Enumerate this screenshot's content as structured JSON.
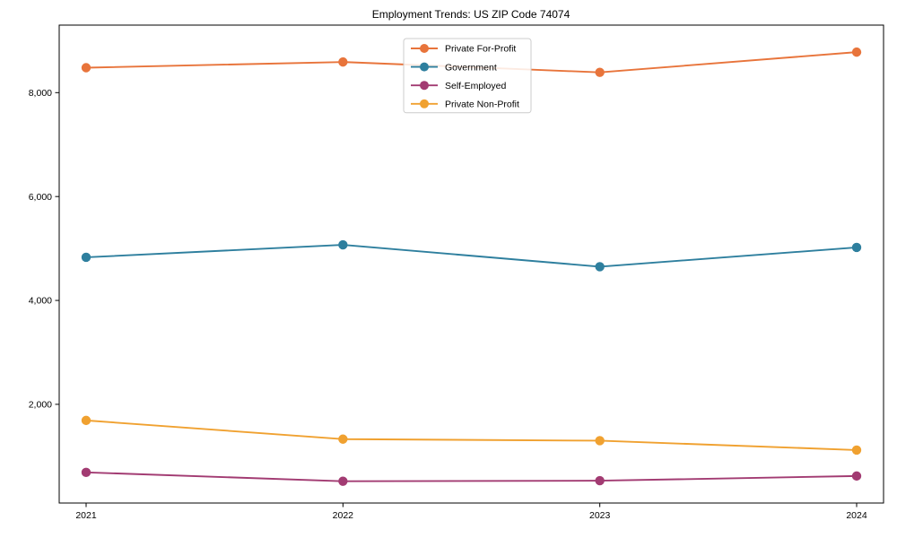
{
  "figure": {
    "background": "#ffffff",
    "spine_color": "#000000",
    "tick_color": "#000000",
    "text_color": "#000000"
  },
  "chart_data": {
    "type": "line",
    "title": "Employment Trends: US ZIP Code 74074",
    "xlabel": "",
    "ylabel": "",
    "categories": [
      "2021",
      "2022",
      "2023",
      "2024"
    ],
    "x_values": [
      2021,
      2022,
      2023,
      2024
    ],
    "y_tick_values": [
      2000,
      4000,
      6000,
      8000
    ],
    "y_tick_labels": [
      "2,000",
      "4,000",
      "6,000",
      "8,000"
    ],
    "ylim": [
      100,
      9300
    ],
    "grid": false,
    "marker": "circle",
    "legend": {
      "position": "upper center",
      "border_color": "#cccccc",
      "background": "#ffffff",
      "entries": [
        "Private For-Profit",
        "Government",
        "Self-Employed",
        "Private Non-Profit"
      ]
    },
    "series": [
      {
        "name": "Private For-Profit",
        "color": "#e8743b",
        "values": [
          8480,
          8590,
          8390,
          8780
        ]
      },
      {
        "name": "Government",
        "color": "#2e7f9e",
        "values": [
          4830,
          5070,
          4650,
          5020
        ]
      },
      {
        "name": "Self-Employed",
        "color": "#a23b72",
        "values": [
          690,
          520,
          530,
          620
        ]
      },
      {
        "name": "Private Non-Profit",
        "color": "#f0a130",
        "values": [
          1690,
          1330,
          1300,
          1120
        ]
      }
    ]
  }
}
